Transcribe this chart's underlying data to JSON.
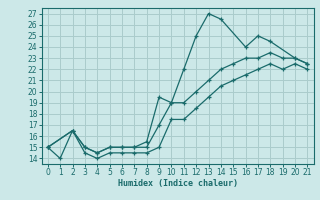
{
  "xlabel": "Humidex (Indice chaleur)",
  "bg_color": "#cce8e8",
  "grid_color": "#aacccc",
  "line_color": "#1a6b6b",
  "xlim": [
    -0.5,
    21.5
  ],
  "ylim": [
    13.5,
    27.5
  ],
  "xticks": [
    0,
    1,
    2,
    3,
    4,
    5,
    6,
    7,
    8,
    9,
    10,
    11,
    12,
    13,
    14,
    15,
    16,
    17,
    18,
    19,
    20,
    21
  ],
  "yticks": [
    14,
    15,
    16,
    17,
    18,
    19,
    20,
    21,
    22,
    23,
    24,
    25,
    26,
    27
  ],
  "line1_x": [
    0,
    1,
    2,
    3,
    4,
    5,
    6,
    7,
    8,
    9,
    10,
    11,
    12,
    13,
    14,
    16,
    17,
    18,
    20,
    21
  ],
  "line1_y": [
    15,
    14,
    16.5,
    15,
    14.5,
    15,
    15,
    15,
    15.5,
    19.5,
    19,
    22,
    25,
    27,
    26.5,
    24,
    25,
    24.5,
    23,
    22.5
  ],
  "line2_x": [
    0,
    2,
    3,
    4,
    5,
    6,
    7,
    8,
    9,
    10,
    11,
    12,
    13,
    14,
    15,
    16,
    17,
    18,
    19,
    20,
    21
  ],
  "line2_y": [
    15,
    16.5,
    15,
    14.5,
    15,
    15,
    15,
    15,
    17,
    19,
    19,
    20,
    21,
    22,
    22.5,
    23,
    23,
    23.5,
    23,
    23,
    22.5
  ],
  "line3_x": [
    0,
    2,
    3,
    4,
    5,
    6,
    7,
    8,
    9,
    10,
    11,
    12,
    13,
    14,
    15,
    16,
    17,
    18,
    19,
    20,
    21
  ],
  "line3_y": [
    15,
    16.5,
    14.5,
    14,
    14.5,
    14.5,
    14.5,
    14.5,
    15,
    17.5,
    17.5,
    18.5,
    19.5,
    20.5,
    21,
    21.5,
    22,
    22.5,
    22,
    22.5,
    22
  ],
  "xlabel_fontsize": 6.0,
  "tick_fontsize": 5.5
}
